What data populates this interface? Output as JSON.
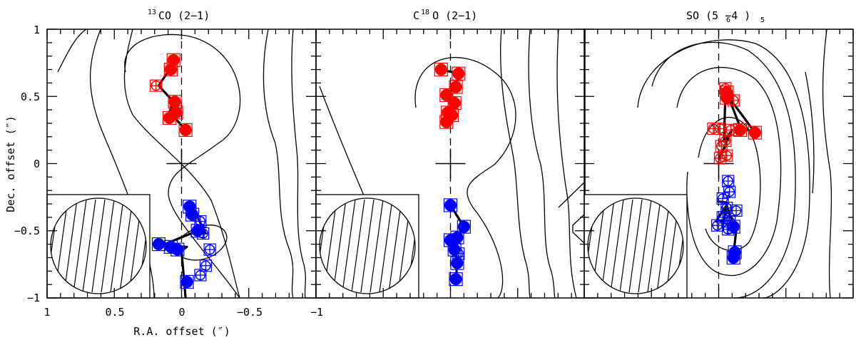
{
  "chart_data": {
    "type": "scatter",
    "xlabel": "R.A. offset (″)",
    "ylabel": "Dec. offset (″)",
    "xlim": [
      1,
      -1
    ],
    "ylim": [
      -1,
      1
    ],
    "x_ticks": [
      {
        "value": 1,
        "label": "1"
      },
      {
        "value": 0.5,
        "label": "0.5"
      },
      {
        "value": 0,
        "label": "0"
      },
      {
        "value": -0.5,
        "label": "−0.5"
      },
      {
        "value": -1,
        "label": "−1"
      }
    ],
    "y_ticks": [
      {
        "value": 1,
        "label": "1"
      },
      {
        "value": 0.5,
        "label": "0.5"
      },
      {
        "value": 0,
        "label": "0"
      },
      {
        "value": -0.5,
        "label": "−0.5"
      },
      {
        "value": -1,
        "label": "−1"
      }
    ],
    "colors": {
      "red": "#ff0000",
      "blue": "#0000ff",
      "line": "#000000"
    },
    "panels": [
      {
        "title_main": "CO (2−1)",
        "title_sup": "13",
        "red_filled": [
          [
            0.06,
            0.77
          ],
          [
            0.08,
            0.7
          ],
          [
            0.05,
            0.46
          ],
          [
            0.04,
            0.38
          ],
          [
            0.09,
            0.34
          ],
          [
            -0.03,
            0.25
          ]
        ],
        "red_open": [
          [
            0.19,
            0.58
          ]
        ],
        "red_path": [
          [
            0.04,
            0.77
          ],
          [
            0.09,
            0.7
          ],
          [
            0.17,
            0.58
          ],
          [
            0.06,
            0.46
          ],
          [
            0.1,
            0.36
          ],
          [
            0.05,
            0.34
          ],
          [
            -0.03,
            0.25
          ]
        ],
        "blue_filled": [
          [
            -0.06,
            -0.32
          ],
          [
            -0.08,
            -0.38
          ],
          [
            -0.12,
            -0.5
          ],
          [
            0.08,
            -0.62
          ],
          [
            0.17,
            -0.6
          ],
          [
            0.03,
            -0.64
          ],
          [
            -0.04,
            -0.88
          ]
        ],
        "blue_open": [
          [
            -0.14,
            -0.43
          ],
          [
            -0.16,
            -0.52
          ],
          [
            -0.21,
            -0.64
          ],
          [
            -0.18,
            -0.76
          ],
          [
            -0.14,
            -0.83
          ]
        ],
        "blue_path": [
          [
            -0.06,
            -0.32
          ],
          [
            -0.12,
            -0.4
          ],
          [
            -0.18,
            -0.52
          ],
          [
            -0.12,
            -0.5
          ],
          [
            0.15,
            -0.61
          ],
          [
            -0.04,
            -0.62
          ],
          [
            0.0,
            -0.65
          ],
          [
            -0.03,
            -1.0
          ]
        ]
      },
      {
        "title_main": "C  O (2−1)",
        "title_sup": "18",
        "red_filled": [
          [
            0.07,
            0.7
          ],
          [
            -0.06,
            0.67
          ],
          [
            -0.04,
            0.57
          ],
          [
            0.03,
            0.51
          ],
          [
            -0.03,
            0.45
          ],
          [
            0.02,
            0.38
          ],
          [
            -0.01,
            0.36
          ],
          [
            0.03,
            0.31
          ]
        ],
        "red_open": [],
        "red_path": [
          [
            0.07,
            0.7
          ],
          [
            -0.06,
            0.67
          ],
          [
            -0.04,
            0.57
          ],
          [
            0.02,
            0.52
          ],
          [
            -0.03,
            0.44
          ],
          [
            0.03,
            0.38
          ],
          [
            -0.01,
            0.36
          ],
          [
            0.03,
            0.31
          ]
        ],
        "blue_filled": [
          [
            0.0,
            -0.31
          ],
          [
            -0.1,
            -0.47
          ],
          [
            -0.05,
            -0.55
          ],
          [
            0.0,
            -0.57
          ],
          [
            -0.03,
            -0.64
          ],
          [
            -0.05,
            -0.74
          ],
          [
            -0.04,
            -0.86
          ]
        ],
        "blue_open": [
          [
            -0.06,
            -0.67
          ]
        ],
        "blue_path": [
          [
            0.0,
            -0.31
          ],
          [
            -0.1,
            -0.47
          ],
          [
            -0.05,
            -0.55
          ],
          [
            0.0,
            -0.58
          ],
          [
            -0.04,
            -0.65
          ],
          [
            -0.05,
            -0.75
          ],
          [
            -0.04,
            -0.86
          ]
        ]
      },
      {
        "title_main": "SO (5 −4 )",
        "title_sub1": "6",
        "title_sub2": "5",
        "red_filled": [
          [
            -0.06,
            0.53
          ],
          [
            -0.06,
            0.49
          ],
          [
            -0.16,
            0.25
          ],
          [
            -0.27,
            0.23
          ]
        ],
        "red_open": [
          [
            -0.05,
            0.56
          ],
          [
            -0.11,
            0.47
          ],
          [
            0.04,
            0.26
          ],
          [
            -0.01,
            0.26
          ],
          [
            -0.09,
            0.25
          ],
          [
            -0.05,
            0.17
          ],
          [
            -0.02,
            0.13
          ],
          [
            -0.06,
            0.06
          ],
          [
            -0.01,
            0.04
          ]
        ],
        "red_path": [
          [
            -0.06,
            0.53
          ],
          [
            -0.16,
            0.27
          ],
          [
            -0.27,
            0.23
          ],
          [
            -0.16,
            0.38
          ],
          [
            -0.1,
            0.46
          ],
          [
            -0.05,
            0.52
          ],
          [
            -0.04,
            0.17
          ],
          [
            -0.1,
            0.25
          ],
          [
            0.0,
            0.03
          ]
        ],
        "blue_filled": [
          [
            -0.11,
            -0.47
          ],
          [
            -0.12,
            -0.66
          ],
          [
            -0.11,
            -0.7
          ]
        ],
        "blue_open": [
          [
            -0.07,
            -0.13
          ],
          [
            -0.08,
            -0.21
          ],
          [
            -0.03,
            -0.26
          ],
          [
            -0.06,
            -0.33
          ],
          [
            -0.13,
            -0.35
          ],
          [
            -0.03,
            -0.4
          ],
          [
            -0.08,
            -0.43
          ],
          [
            0.01,
            -0.46
          ],
          [
            -0.07,
            -0.49
          ]
        ],
        "blue_path": [
          [
            0.01,
            -0.28
          ],
          [
            -0.06,
            -0.29
          ],
          [
            -0.04,
            -0.42
          ],
          [
            0.02,
            -0.43
          ],
          [
            -0.06,
            -0.31
          ],
          [
            -0.11,
            -0.46
          ],
          [
            -0.13,
            -0.5
          ],
          [
            -0.11,
            -0.68
          ]
        ]
      }
    ]
  }
}
